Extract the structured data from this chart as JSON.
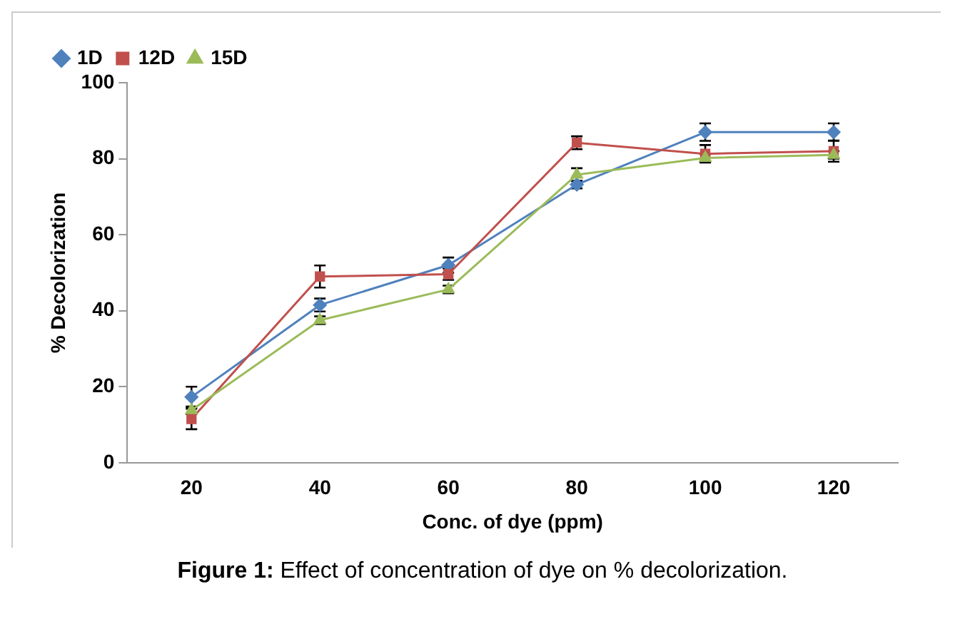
{
  "chart_data": {
    "type": "line",
    "xlabel": "Conc. of dye (ppm)",
    "ylabel": "% Decolorization",
    "categories": [
      "20",
      "40",
      "60",
      "80",
      "100",
      "120"
    ],
    "series": [
      {
        "name": "1D",
        "color": "#4f81bd",
        "marker": "diamond",
        "values": [
          17.3,
          41.5,
          52,
          73.2,
          87,
          87
        ],
        "errors": [
          2.7,
          1.7,
          2,
          1,
          2.3,
          2.3
        ]
      },
      {
        "name": "12D",
        "color": "#c0504d",
        "marker": "square",
        "values": [
          11.5,
          49,
          49.6,
          84.2,
          81.3,
          82
        ],
        "errors": [
          2.7,
          2.9,
          1.5,
          1.7,
          2.3,
          2.8
        ]
      },
      {
        "name": "15D",
        "color": "#9bbb59",
        "marker": "triangle",
        "values": [
          13.8,
          37.5,
          45.6,
          75.8,
          80.2,
          81
        ],
        "errors": [
          1,
          1,
          1,
          1.7,
          1,
          1
        ]
      }
    ],
    "ylim": [
      0,
      100
    ],
    "yticks": [
      0,
      20,
      40,
      60,
      80,
      100
    ],
    "grid": false,
    "legend": "top left",
    "annotations": [
      "Figure 1: Effect of concentration of dye on % decolorization."
    ]
  }
}
